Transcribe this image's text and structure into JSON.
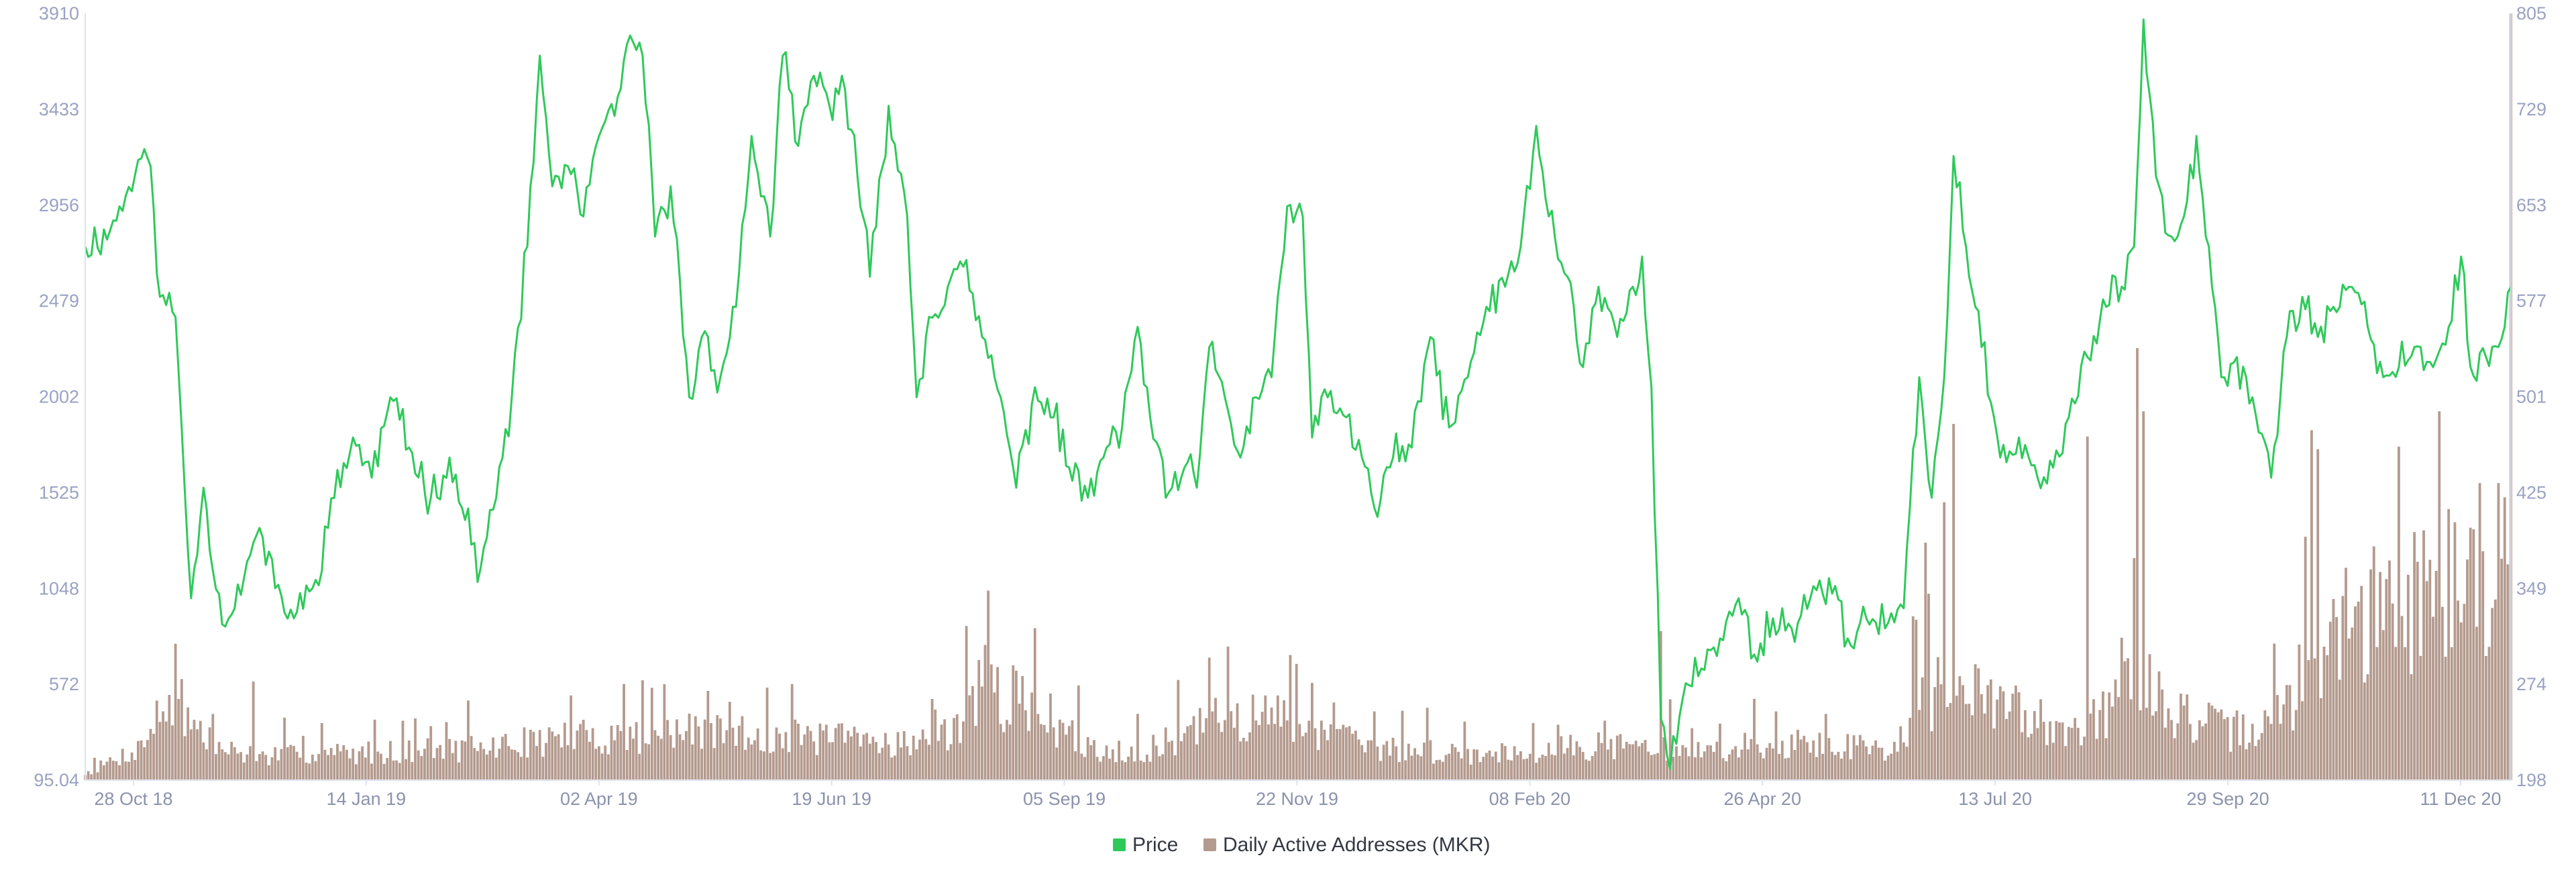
{
  "chart_data": {
    "type": "line+bar",
    "title": "",
    "colors": {
      "price": "#2fc95a",
      "addresses": "#b49a8e",
      "axis": "#dde2ee",
      "tick_text": "#9aa2c3"
    },
    "left_axis": {
      "ticks": [
        "95.04",
        "572",
        "1048",
        "1525",
        "2002",
        "2479",
        "2956",
        "3433",
        "3910"
      ],
      "ylim": [
        95.04,
        3910
      ]
    },
    "right_axis": {
      "ticks": [
        "198",
        "274",
        "349",
        "425",
        "501",
        "577",
        "653",
        "729",
        "805"
      ],
      "ylim": [
        198,
        805
      ]
    },
    "x_ticks": [
      "28 Oct 18",
      "14 Jan 19",
      "02 Apr 19",
      "19 Jun 19",
      "05 Sep 19",
      "22 Nov 19",
      "08 Feb 20",
      "26 Apr 20",
      "13 Jul 20",
      "29 Sep 20",
      "11 Dec 20"
    ],
    "x_range": [
      "2018-10-24",
      "2020-12-11"
    ],
    "legend_position": "bottom-center",
    "series": [
      {
        "name": "Price",
        "type": "line",
        "axis": "left",
        "color": "#2fc95a",
        "points": [
          [
            "2018-10-24",
            2750
          ],
          [
            "2018-11-01",
            2830
          ],
          [
            "2018-11-06",
            3000
          ],
          [
            "2018-11-10",
            3180
          ],
          [
            "2018-11-14",
            3150
          ],
          [
            "2018-11-17",
            2500
          ],
          [
            "2018-11-22",
            2400
          ],
          [
            "2018-11-27",
            1000
          ],
          [
            "2018-12-01",
            1550
          ],
          [
            "2018-12-07",
            870
          ],
          [
            "2018-12-14",
            1100
          ],
          [
            "2018-12-19",
            1350
          ],
          [
            "2018-12-24",
            1050
          ],
          [
            "2018-12-30",
            900
          ],
          [
            "2019-01-05",
            1050
          ],
          [
            "2019-01-12",
            1500
          ],
          [
            "2019-01-18",
            1800
          ],
          [
            "2019-01-24",
            1600
          ],
          [
            "2019-01-30",
            2000
          ],
          [
            "2019-02-05",
            1750
          ],
          [
            "2019-02-12",
            1500
          ],
          [
            "2019-02-18",
            1700
          ],
          [
            "2019-02-22",
            1450
          ],
          [
            "2019-02-28",
            1150
          ],
          [
            "2019-03-05",
            1500
          ],
          [
            "2019-03-10",
            2000
          ],
          [
            "2019-03-15",
            2750
          ],
          [
            "2019-03-19",
            3700
          ],
          [
            "2019-03-23",
            3050
          ],
          [
            "2019-03-28",
            3150
          ],
          [
            "2019-04-02",
            2900
          ],
          [
            "2019-04-06",
            3250
          ],
          [
            "2019-04-12",
            3400
          ],
          [
            "2019-04-17",
            3800
          ],
          [
            "2019-04-21",
            3700
          ],
          [
            "2019-04-25",
            2800
          ],
          [
            "2019-04-30",
            3050
          ],
          [
            "2019-05-06",
            2000
          ],
          [
            "2019-05-10",
            2300
          ],
          [
            "2019-05-16",
            2100
          ],
          [
            "2019-05-21",
            2450
          ],
          [
            "2019-05-26",
            3300
          ],
          [
            "2019-06-01",
            2800
          ],
          [
            "2019-06-05",
            3700
          ],
          [
            "2019-06-10",
            3250
          ],
          [
            "2019-06-15",
            3600
          ],
          [
            "2019-06-20",
            3450
          ],
          [
            "2019-06-24",
            3600
          ],
          [
            "2019-06-29",
            3100
          ],
          [
            "2019-07-03",
            2600
          ],
          [
            "2019-07-09",
            3450
          ],
          [
            "2019-07-15",
            2900
          ],
          [
            "2019-07-18",
            2000
          ],
          [
            "2019-07-22",
            2400
          ],
          [
            "2019-07-28",
            2550
          ],
          [
            "2019-08-02",
            2650
          ],
          [
            "2019-08-08",
            2300
          ],
          [
            "2019-08-14",
            2000
          ],
          [
            "2019-08-19",
            1550
          ],
          [
            "2019-08-25",
            2050
          ],
          [
            "2019-08-31",
            1900
          ],
          [
            "2019-09-05",
            1650
          ],
          [
            "2019-09-11",
            1500
          ],
          [
            "2019-09-16",
            1700
          ],
          [
            "2019-09-22",
            1850
          ],
          [
            "2019-09-27",
            2350
          ],
          [
            "2019-10-01",
            1900
          ],
          [
            "2019-10-06",
            1500
          ],
          [
            "2019-10-12",
            1650
          ],
          [
            "2019-10-16",
            1550
          ],
          [
            "2019-10-20",
            2250
          ],
          [
            "2019-10-25",
            2000
          ],
          [
            "2019-10-30",
            1700
          ],
          [
            "2019-11-04",
            2000
          ],
          [
            "2019-11-09",
            2100
          ],
          [
            "2019-11-14",
            2950
          ],
          [
            "2019-11-19",
            2900
          ],
          [
            "2019-11-22",
            1800
          ],
          [
            "2019-11-27",
            2000
          ],
          [
            "2019-12-03",
            1900
          ],
          [
            "2019-12-08",
            1700
          ],
          [
            "2019-12-12",
            1450
          ],
          [
            "2019-12-18",
            1700
          ],
          [
            "2019-12-24",
            1750
          ],
          [
            "2019-12-30",
            2300
          ],
          [
            "2020-01-05",
            1850
          ],
          [
            "2020-01-11",
            2100
          ],
          [
            "2020-01-17",
            2450
          ],
          [
            "2020-01-23",
            2550
          ],
          [
            "2020-01-28",
            2750
          ],
          [
            "2020-02-02",
            3350
          ],
          [
            "2020-02-06",
            2900
          ],
          [
            "2020-02-12",
            2600
          ],
          [
            "2020-02-17",
            2150
          ],
          [
            "2020-02-22",
            2550
          ],
          [
            "2020-02-28",
            2300
          ],
          [
            "2020-03-04",
            2550
          ],
          [
            "2020-03-07",
            2700
          ],
          [
            "2020-03-10",
            2050
          ],
          [
            "2020-03-13",
            400
          ],
          [
            "2020-03-16",
            150
          ],
          [
            "2020-03-20",
            500
          ],
          [
            "2020-03-26",
            650
          ],
          [
            "2020-04-01",
            800
          ],
          [
            "2020-04-07",
            1000
          ],
          [
            "2020-04-12",
            720
          ],
          [
            "2020-04-18",
            900
          ],
          [
            "2020-04-24",
            850
          ],
          [
            "2020-04-30",
            1000
          ],
          [
            "2020-05-06",
            1100
          ],
          [
            "2020-05-12",
            800
          ],
          [
            "2020-05-18",
            900
          ],
          [
            "2020-05-24",
            850
          ],
          [
            "2020-05-30",
            950
          ],
          [
            "2020-06-04",
            2100
          ],
          [
            "2020-06-08",
            1500
          ],
          [
            "2020-06-12",
            2100
          ],
          [
            "2020-06-15",
            3200
          ],
          [
            "2020-06-19",
            2750
          ],
          [
            "2020-06-24",
            2250
          ],
          [
            "2020-06-30",
            1700
          ],
          [
            "2020-07-06",
            1800
          ],
          [
            "2020-07-12",
            1600
          ],
          [
            "2020-07-17",
            1650
          ],
          [
            "2020-07-22",
            1900
          ],
          [
            "2020-07-28",
            2200
          ],
          [
            "2020-08-03",
            2450
          ],
          [
            "2020-08-08",
            2550
          ],
          [
            "2020-08-12",
            2750
          ],
          [
            "2020-08-15",
            3880
          ],
          [
            "2020-08-19",
            3100
          ],
          [
            "2020-08-24",
            2800
          ],
          [
            "2020-08-28",
            2900
          ],
          [
            "2020-09-01",
            3300
          ],
          [
            "2020-09-05",
            2750
          ],
          [
            "2020-09-09",
            2100
          ],
          [
            "2020-09-14",
            2200
          ],
          [
            "2020-09-19",
            2000
          ],
          [
            "2020-09-25",
            1600
          ],
          [
            "2020-09-30",
            2300
          ],
          [
            "2020-10-05",
            2500
          ],
          [
            "2020-10-10",
            2300
          ],
          [
            "2020-10-15",
            2450
          ],
          [
            "2020-10-20",
            2550
          ],
          [
            "2020-10-26",
            2350
          ],
          [
            "2020-10-31",
            2100
          ],
          [
            "2020-11-05",
            2150
          ],
          [
            "2020-11-10",
            2250
          ],
          [
            "2020-11-16",
            2150
          ],
          [
            "2020-11-21",
            2350
          ],
          [
            "2020-11-25",
            2700
          ],
          [
            "2020-11-28",
            2150
          ],
          [
            "2020-12-03",
            2200
          ],
          [
            "2020-12-07",
            2250
          ],
          [
            "2020-12-11",
            2550
          ]
        ]
      },
      {
        "name": "Daily Active Addresses (MKR)",
        "type": "bar",
        "axis": "right",
        "color": "#b49a8e",
        "levels": [
          [
            "2018-10-24",
            203
          ],
          [
            "2018-11-10",
            222
          ],
          [
            "2018-11-20",
            258
          ],
          [
            "2018-12-05",
            222
          ],
          [
            "2018-12-20",
            216
          ],
          [
            "2019-01-10",
            218
          ],
          [
            "2019-02-05",
            220
          ],
          [
            "2019-03-01",
            222
          ],
          [
            "2019-03-25",
            230
          ],
          [
            "2019-04-20",
            232
          ],
          [
            "2019-05-15",
            234
          ],
          [
            "2019-06-10",
            230
          ],
          [
            "2019-07-05",
            228
          ],
          [
            "2019-07-25",
            226
          ],
          [
            "2019-08-08",
            265
          ],
          [
            "2019-08-25",
            255
          ],
          [
            "2019-09-10",
            222
          ],
          [
            "2019-09-30",
            220
          ],
          [
            "2019-10-25",
            245
          ],
          [
            "2019-11-15",
            245
          ],
          [
            "2019-12-10",
            222
          ],
          [
            "2020-01-15",
            218
          ],
          [
            "2020-02-10",
            222
          ],
          [
            "2020-03-05",
            225
          ],
          [
            "2020-03-20",
            218
          ],
          [
            "2020-04-20",
            226
          ],
          [
            "2020-05-25",
            222
          ],
          [
            "2020-06-03",
            250
          ],
          [
            "2020-06-12",
            270
          ],
          [
            "2020-06-20",
            262
          ],
          [
            "2020-07-05",
            250
          ],
          [
            "2020-07-20",
            240
          ],
          [
            "2020-08-01",
            245
          ],
          [
            "2020-08-15",
            275
          ],
          [
            "2020-08-25",
            250
          ],
          [
            "2020-09-10",
            235
          ],
          [
            "2020-09-25",
            238
          ],
          [
            "2020-10-05",
            275
          ],
          [
            "2020-10-15",
            310
          ],
          [
            "2020-10-30",
            325
          ],
          [
            "2020-11-15",
            345
          ],
          [
            "2020-12-05",
            365
          ],
          [
            "2020-12-11",
            360
          ]
        ],
        "spikes": [
          [
            "2018-11-24",
            278
          ],
          [
            "2018-12-17",
            276
          ],
          [
            "2019-02-03",
            245
          ],
          [
            "2019-03-29",
            265
          ],
          [
            "2019-04-21",
            277
          ],
          [
            "2019-05-19",
            260
          ],
          [
            "2019-08-03",
            320
          ],
          [
            "2019-08-09",
            305
          ],
          [
            "2019-10-20",
            295
          ],
          [
            "2019-11-17",
            290
          ],
          [
            "2019-11-22",
            275
          ],
          [
            "2020-02-24",
            245
          ],
          [
            "2020-03-13",
            316
          ],
          [
            "2020-03-16",
            262
          ],
          [
            "2020-06-03",
            325
          ],
          [
            "2020-06-06",
            386
          ],
          [
            "2020-06-12",
            418
          ],
          [
            "2020-06-15",
            480
          ],
          [
            "2020-07-28",
            470
          ],
          [
            "2020-08-13",
            540
          ],
          [
            "2020-08-15",
            490
          ],
          [
            "2020-10-08",
            475
          ],
          [
            "2020-10-10",
            460
          ],
          [
            "2020-11-05",
            462
          ],
          [
            "2020-11-18",
            490
          ],
          [
            "2020-12-11",
            805
          ]
        ]
      }
    ]
  },
  "legend": {
    "items": [
      {
        "label": "Price",
        "color": "#2fc95a"
      },
      {
        "label": "Daily Active Addresses (MKR)",
        "color": "#b49a8e"
      }
    ]
  }
}
